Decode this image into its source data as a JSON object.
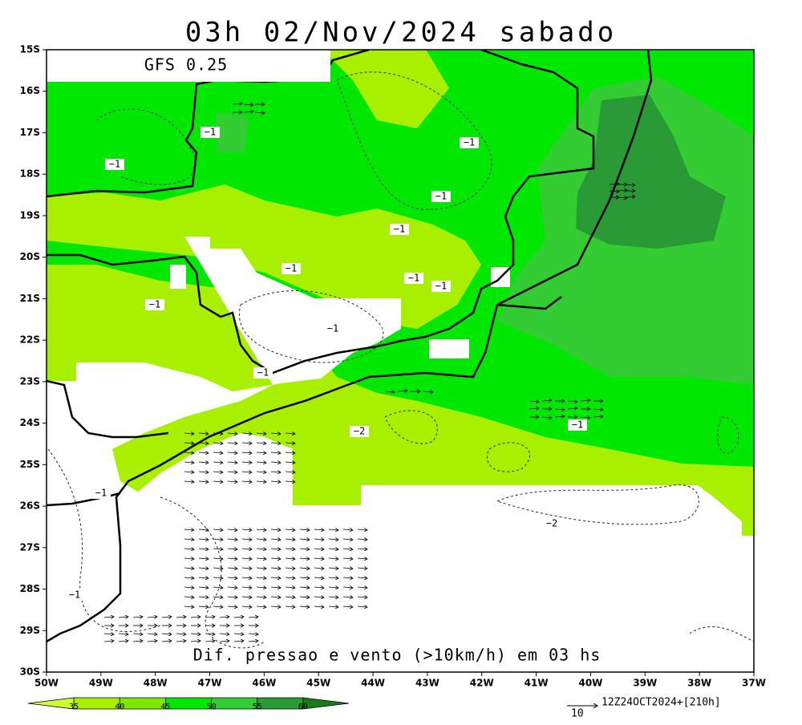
{
  "header": {
    "title": "03h 02/Nov/2024 sabado",
    "model": "GFS 0.25"
  },
  "map": {
    "caption": "Dif. pressao e vento (>10km/h) em 03 hs",
    "lat_labels": [
      "15S",
      "16S",
      "17S",
      "18S",
      "19S",
      "20S",
      "21S",
      "22S",
      "23S",
      "24S",
      "25S",
      "26S",
      "27S",
      "28S",
      "29S",
      "30S"
    ],
    "lon_labels": [
      "50W",
      "49W",
      "48W",
      "47W",
      "46W",
      "45W",
      "44W",
      "43W",
      "42W",
      "41W",
      "40W",
      "39W",
      "38W",
      "37W"
    ],
    "contour_labels": [
      "−1",
      "−1",
      "−1",
      "−1",
      "−1",
      "−1",
      "−1",
      "−1",
      "−1",
      "−1",
      "−1",
      "−2",
      "−1",
      "−1",
      "−2",
      "−1"
    ]
  },
  "colorbar": {
    "ticks": [
      35,
      40,
      45,
      50,
      55,
      60
    ]
  },
  "footer": {
    "vector_scale": "10",
    "run": "12Z24OCT2024+[210h]"
  }
}
